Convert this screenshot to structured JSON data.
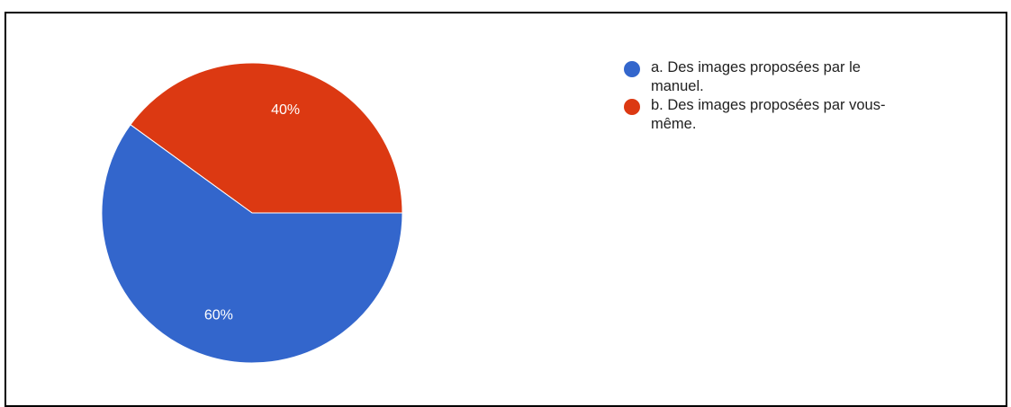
{
  "chart_data": {
    "type": "pie",
    "title": "",
    "slices": [
      {
        "label": "a. Des images proposées par le manuel.",
        "value": 60,
        "display": "60%",
        "color": "#3366cc"
      },
      {
        "label": "b. Des images proposées par vous-même.",
        "value": 40,
        "display": "40%",
        "color": "#dc3912"
      }
    ],
    "legend_position": "right",
    "start_angle_deg": 90
  },
  "legend": {
    "items": [
      {
        "line1": "a. Des images proposées par le",
        "line2": "manuel."
      },
      {
        "line1": "b. Des images proposées par vous-",
        "line2": "même."
      }
    ]
  }
}
